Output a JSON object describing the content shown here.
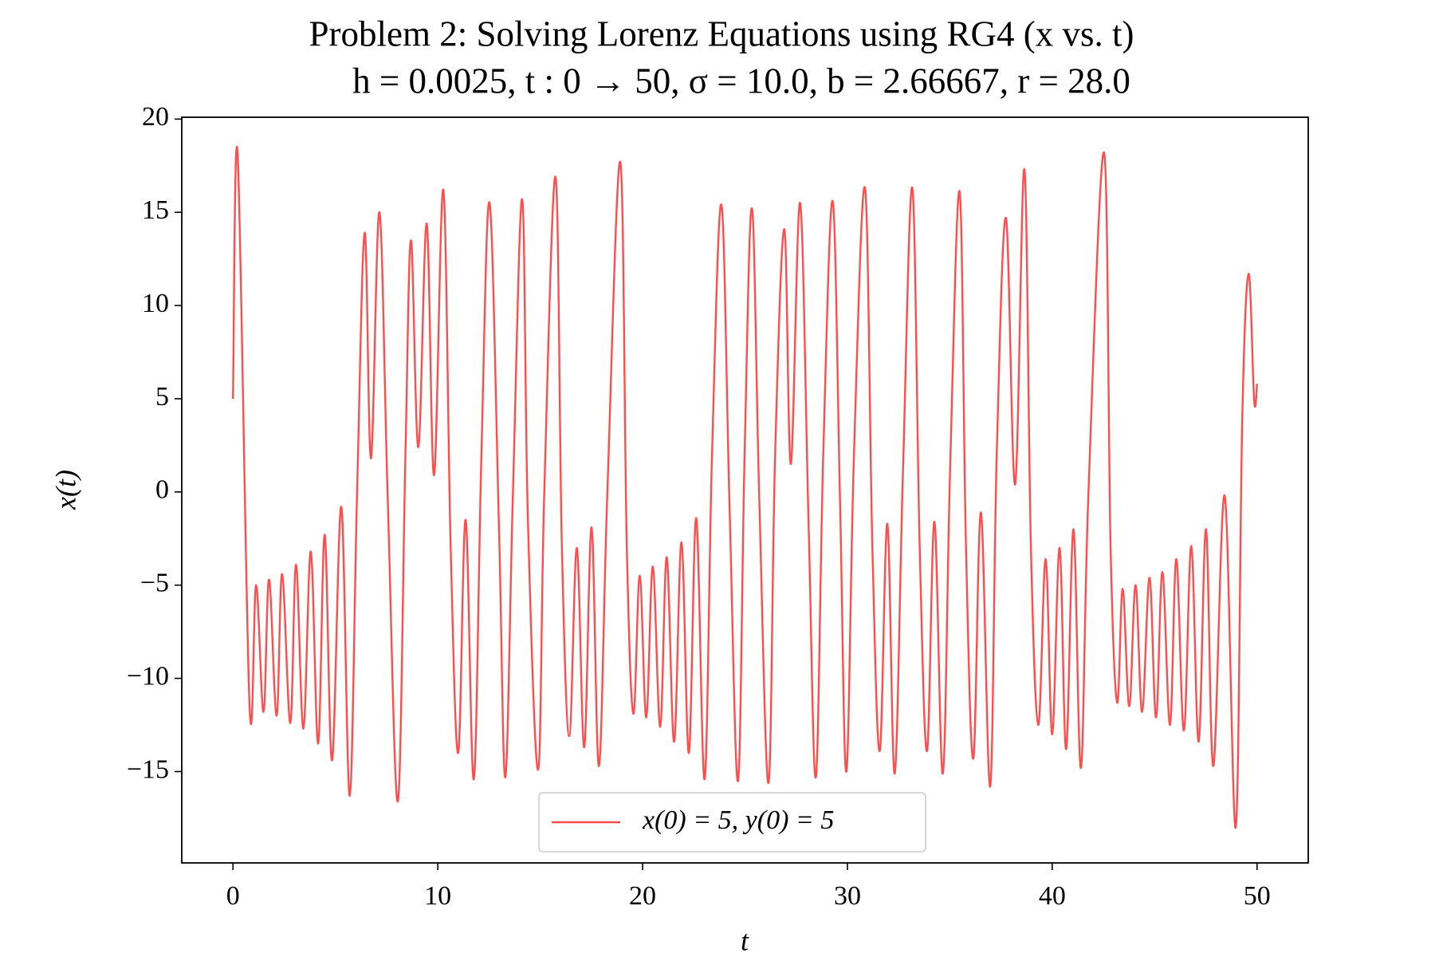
{
  "chart_data": {
    "type": "line",
    "title": "Problem 2: Solving Lorenz Equations using RG4 (x vs. t)",
    "subtitle": "h = 0.0025, t : 0 → 50, σ = 10.0, b = 2.66667, r = 28.0",
    "x_label": "t",
    "y_label": "x(t)",
    "xlim": [
      -2.5,
      52.5
    ],
    "ylim": [
      -19.9,
      20.1
    ],
    "xticks": [
      0,
      10,
      20,
      30,
      40,
      50
    ],
    "yticks": [
      {
        "value": -15,
        "label": "−15"
      },
      {
        "value": -10,
        "label": "−10"
      },
      {
        "value": -5,
        "label": "−5"
      },
      0,
      5,
      10,
      15,
      20
    ],
    "grid": false,
    "legend_loc": "lower center",
    "x": [
      0,
      0.23,
      0.81,
      1.13,
      1.49,
      1.76,
      2.13,
      2.4,
      2.8,
      3.08,
      3.44,
      3.8,
      4.16,
      4.48,
      4.84,
      5.29,
      5.7,
      6.06,
      6.43,
      6.74,
      7.15,
      7.56,
      8.05,
      8.42,
      8.69,
      9.05,
      9.46,
      9.82,
      10.27,
      10.63,
      11.0,
      11.36,
      11.76,
      12.13,
      12.53,
      12.99,
      13.3,
      13.67,
      14.12,
      14.4,
      14.9,
      15.2,
      15.75,
      16.06,
      16.42,
      16.79,
      17.15,
      17.51,
      17.87,
      18.28,
      18.91,
      19.23,
      19.55,
      19.86,
      20.18,
      20.5,
      20.86,
      21.18,
      21.54,
      21.9,
      22.26,
      22.62,
      23.03,
      23.39,
      23.85,
      24.25,
      24.66,
      24.98,
      25.34,
      25.7,
      26.15,
      26.47,
      26.92,
      27.24,
      27.69,
      28.1,
      28.46,
      28.82,
      29.28,
      29.64,
      29.95,
      30.32,
      30.86,
      31.22,
      31.58,
      31.95,
      32.31,
      32.71,
      33.17,
      33.53,
      33.89,
      34.25,
      34.66,
      35.02,
      35.48,
      35.79,
      36.15,
      36.52,
      36.97,
      37.29,
      37.74,
      38.19,
      38.64,
      38.96,
      39.32,
      39.68,
      40.0,
      40.36,
      40.68,
      41.04,
      41.4,
      41.77,
      42.53,
      42.85,
      43.17,
      43.44,
      43.76,
      44.07,
      44.39,
      44.75,
      45.07,
      45.38,
      45.75,
      46.06,
      46.43,
      46.79,
      47.15,
      47.51,
      47.87,
      48.42,
      48.96,
      49.28,
      49.59,
      49.86,
      50
    ],
    "series": [
      {
        "name": "x(0) = 5, y(0) = 5",
        "color": "#ff4d4d",
        "values": [
          5,
          18.1,
          -11.5,
          -5,
          -11.8,
          -4.7,
          -12,
          -4.4,
          -12.4,
          -3.9,
          -12.7,
          -3.2,
          -13.5,
          -2.3,
          -14.4,
          -0.8,
          -16.3,
          0,
          13.9,
          1.8,
          15,
          -0.5,
          -16.6,
          2,
          13.5,
          2.4,
          14.4,
          0.9,
          16.2,
          -3,
          -14,
          -1.5,
          -15.4,
          2,
          15.5,
          -2,
          -15.3,
          0,
          15.7,
          -1.5,
          -14.9,
          0,
          16.9,
          -3,
          -13.1,
          -3,
          -13.7,
          -1.9,
          -14.7,
          0,
          17.7,
          -3,
          -11.9,
          -4.5,
          -12.1,
          -4,
          -12.6,
          -3.5,
          -13.4,
          -2.7,
          -14,
          -1.4,
          -15.4,
          2,
          15.4,
          -1,
          -15.5,
          2,
          15.2,
          -0.5,
          -15.6,
          2,
          14.1,
          1.5,
          15.5,
          -1.5,
          -15.3,
          2,
          15.6,
          -0.5,
          -15,
          2,
          16.3,
          -3,
          -13.9,
          -1.7,
          -15.1,
          1,
          16.3,
          -3,
          -13.9,
          -1.6,
          -15.1,
          1.5,
          16.1,
          -3,
          -14.3,
          -1.1,
          -15.8,
          2,
          14.7,
          0.4,
          17.3,
          -3,
          -12.5,
          -3.6,
          -13,
          -3,
          -13.8,
          -2,
          -14.8,
          0,
          18.2,
          -3,
          -11.3,
          -5.2,
          -11.5,
          -5,
          -11.8,
          -4.6,
          -12.1,
          -4.3,
          -12.5,
          -3.6,
          -12.8,
          -2.9,
          -13.4,
          -2,
          -14.7,
          -0.2,
          -18,
          4,
          11.7,
          4.9,
          5.8
        ]
      }
    ]
  }
}
